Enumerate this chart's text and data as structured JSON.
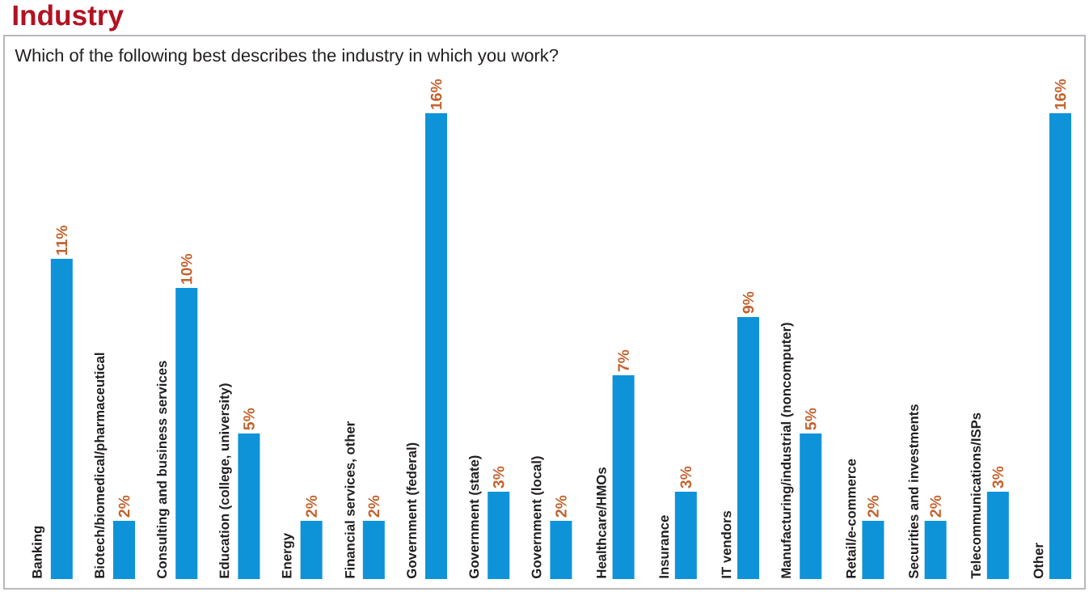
{
  "chart_data": {
    "type": "bar",
    "title": "Industry",
    "subtitle": "Which of the following best describes the industry in which you work?",
    "categories": [
      "Banking",
      "Biotech/biomedical/pharmaceutical",
      "Consulting and business services",
      "Education (college, university)",
      "Energy",
      "Financial services, other",
      "Government (federal)",
      "Government (state)",
      "Government (local)",
      "Healthcare/HMOs",
      "Insurance",
      "IT vendors",
      "Manufacturing/industrial (noncomputer)",
      "Retail/e-commerce",
      "Securities and investments",
      "Telecommunications/ISPs",
      "Other"
    ],
    "values": [
      11,
      2,
      10,
      5,
      2,
      2,
      16,
      3,
      2,
      7,
      3,
      9,
      5,
      2,
      2,
      3,
      16
    ],
    "value_labels": [
      "11%",
      "2%",
      "10%",
      "5%",
      "2%",
      "2%",
      "16%",
      "3%",
      "2%",
      "7%",
      "3%",
      "9%",
      "5%",
      "2%",
      "2%",
      "3%",
      "16%"
    ],
    "color": "#0e93d8"
  }
}
